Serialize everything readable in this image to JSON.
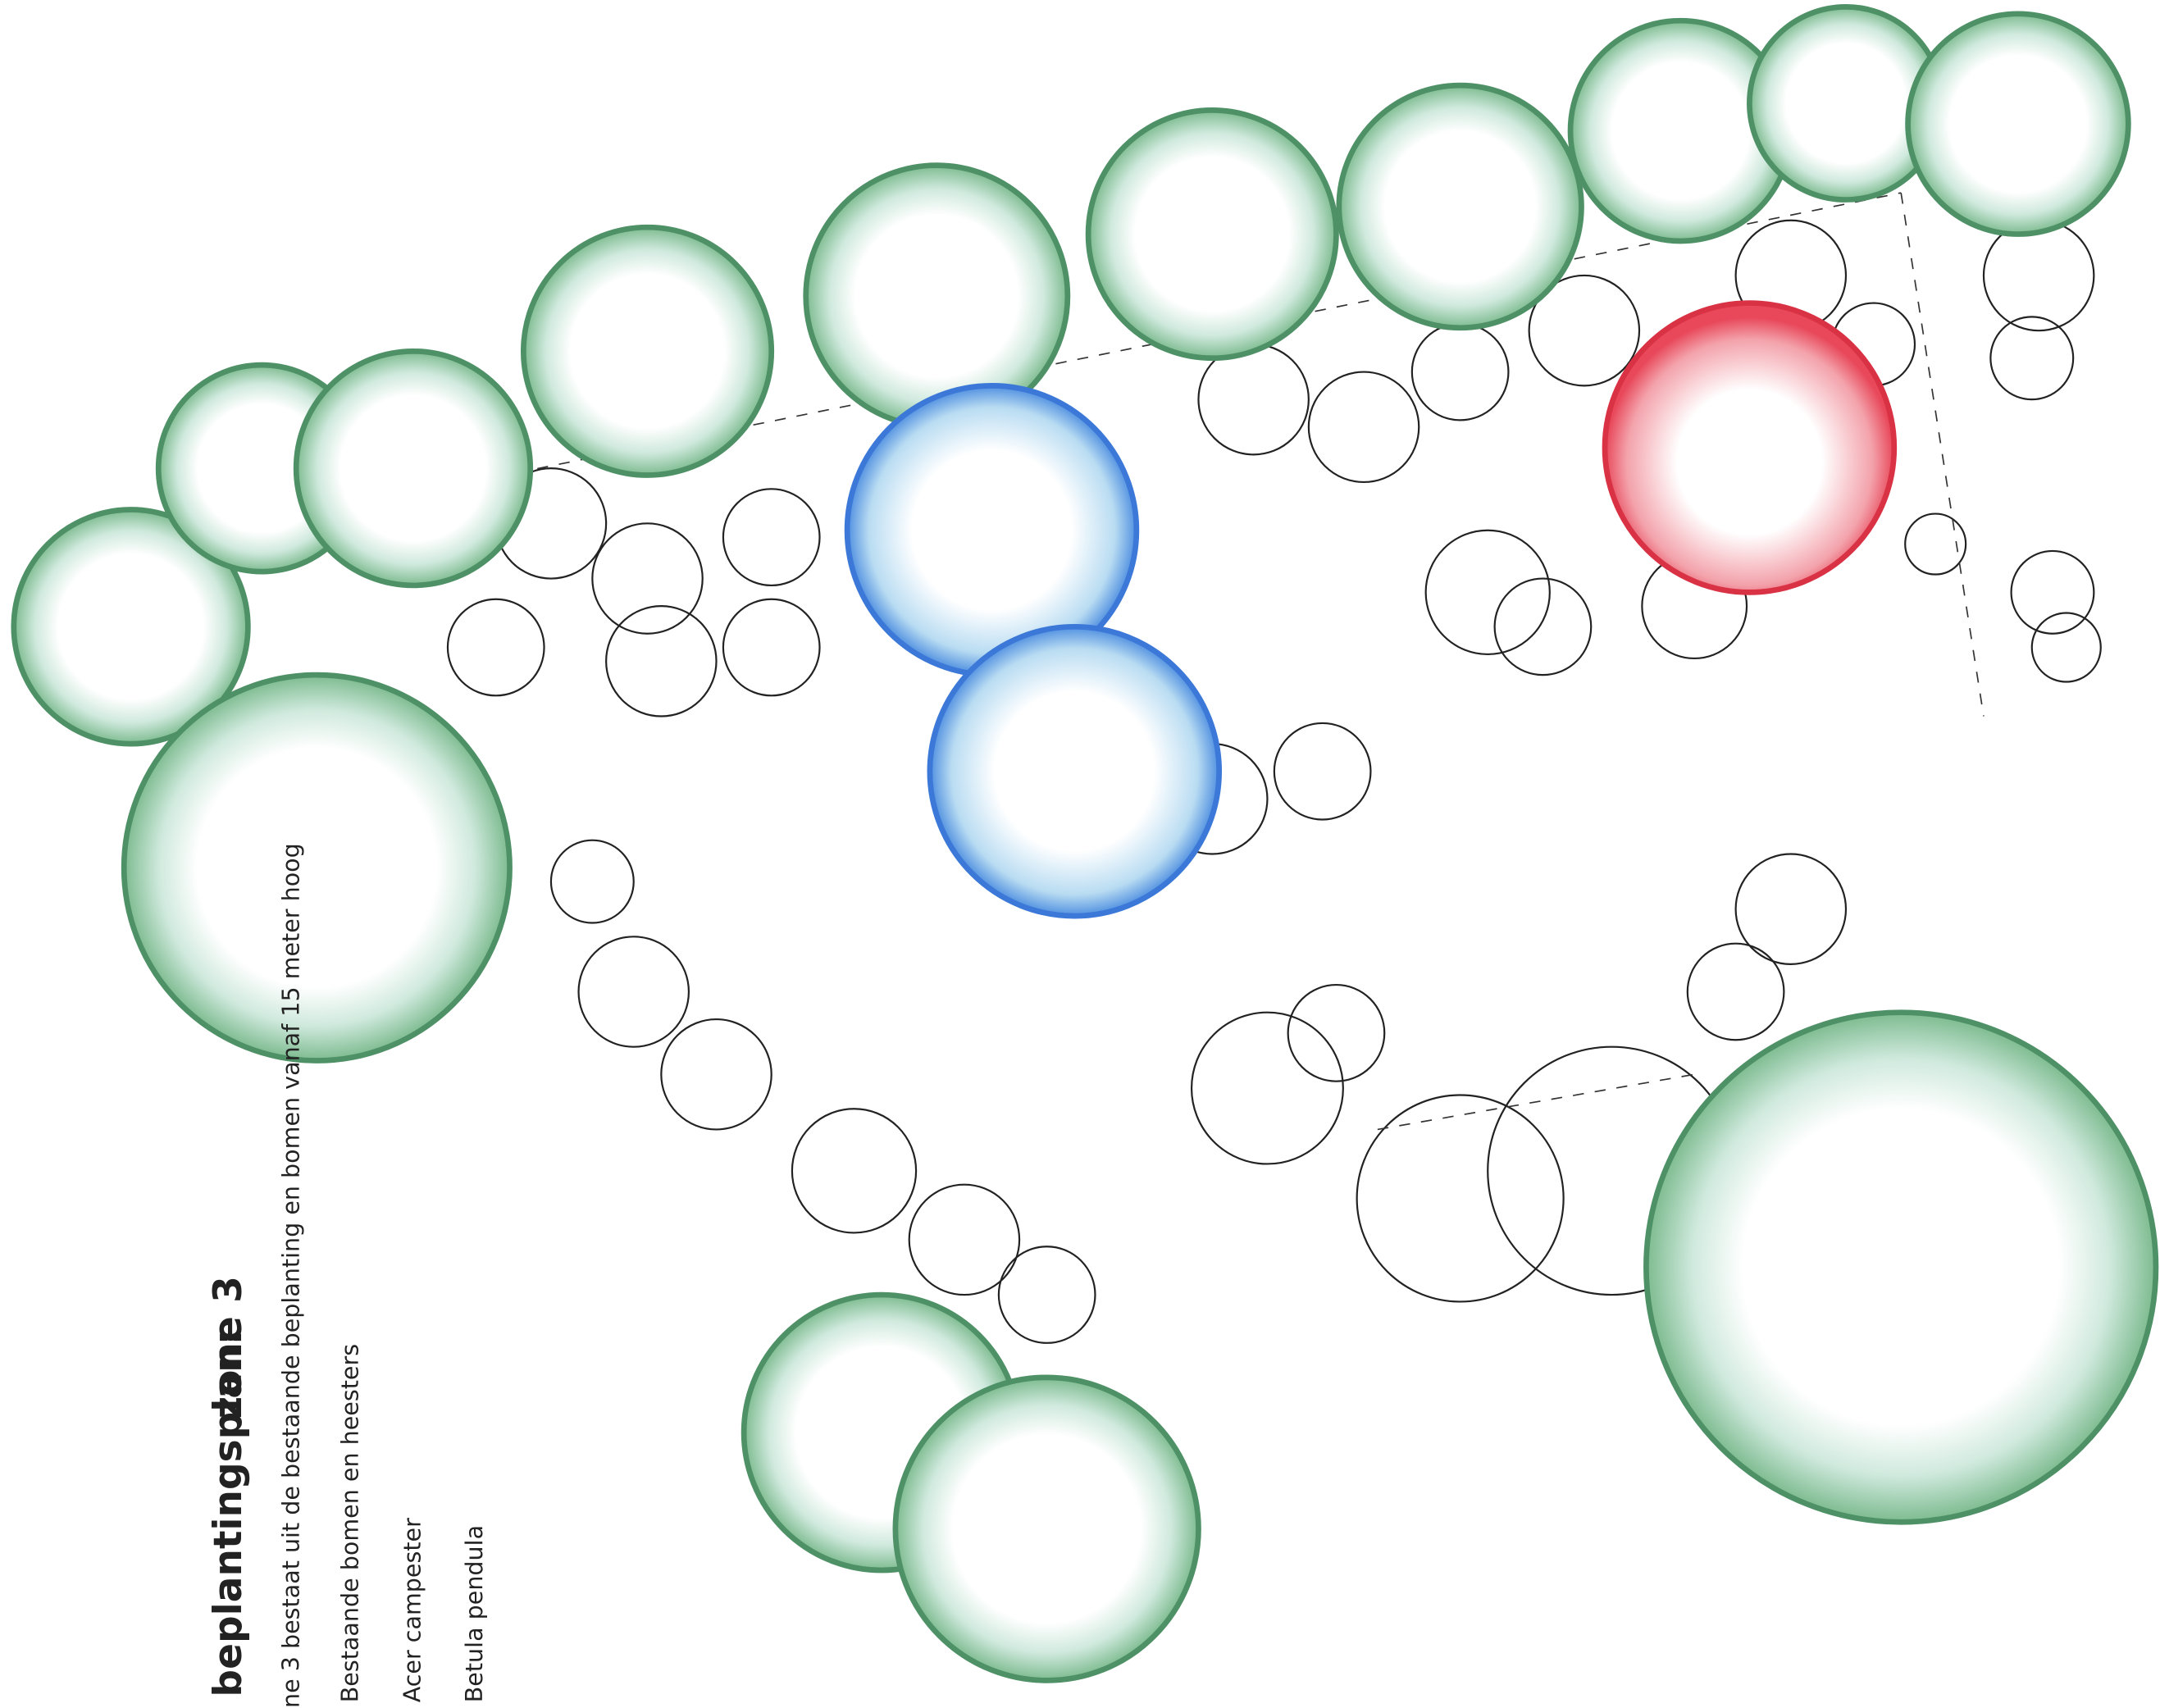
{
  "title": "beplantingsplan:",
  "zone": "zone 3",
  "description": "ne 3 bestaat uit de bestaande beplanting en bomen vanaf 15 meter hoog",
  "legend": [
    "Bestaande bomen en heesters",
    "Acer campester",
    "Betula pendula"
  ]
}
